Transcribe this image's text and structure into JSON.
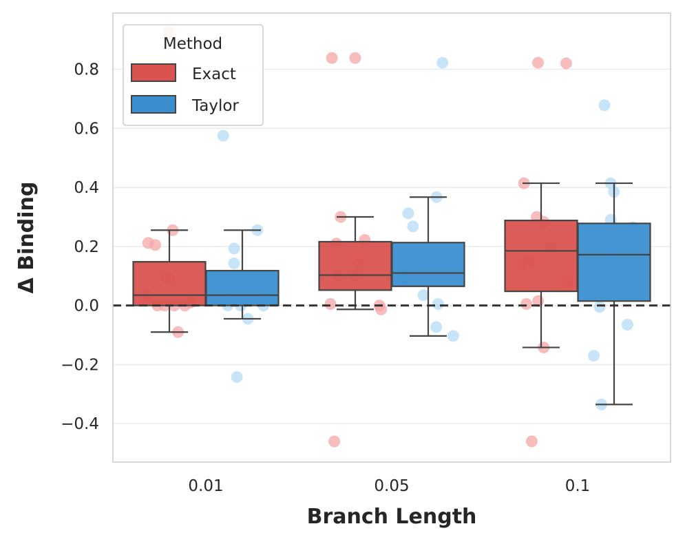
{
  "chart_data": {
    "type": "box",
    "title": "",
    "xlabel": "Branch Length",
    "ylabel": "Δ Binding",
    "categories": [
      "0.01",
      "0.05",
      "0.1"
    ],
    "ylim": [
      -0.53,
      0.99
    ],
    "yticks": [
      -0.4,
      -0.2,
      0.0,
      0.2,
      0.4,
      0.6,
      0.8
    ],
    "ytick_labels": [
      "−0.4",
      "−0.2",
      "0.0",
      "0.2",
      "0.4",
      "0.6",
      "0.8"
    ],
    "grid": true,
    "reference_line": {
      "y": 0.0,
      "style": "dashed"
    },
    "legend": {
      "title": "Method",
      "placement": "top-left",
      "entries": [
        "Exact",
        "Taylor"
      ]
    },
    "series": [
      {
        "name": "Exact",
        "color": "#d9534f",
        "point_color": "#f4a6a6",
        "boxes": [
          {
            "category": "0.01",
            "whisker_low": -0.09,
            "q1": 0.0,
            "median": 0.035,
            "q3": 0.148,
            "whisker_high": 0.255
          },
          {
            "category": "0.05",
            "whisker_low": -0.013,
            "q1": 0.052,
            "median": 0.103,
            "q3": 0.216,
            "whisker_high": 0.3
          },
          {
            "category": "0.1",
            "whisker_low": -0.142,
            "q1": 0.048,
            "median": 0.185,
            "q3": 0.288,
            "whisker_high": 0.414
          }
        ],
        "points": [
          {
            "category": "0.01",
            "y": [
              0.925,
              0.255,
              0.212,
              0.205,
              0.095,
              0.09,
              0.035,
              0.01,
              0.0,
              0.0,
              0.0,
              0.0,
              -0.09
            ]
          },
          {
            "category": "0.05",
            "y": [
              0.838,
              0.838,
              0.3,
              0.222,
              0.21,
              0.14,
              0.1,
              0.1,
              0.005,
              0.0,
              -0.013,
              -0.46
            ]
          },
          {
            "category": "0.1",
            "y": [
              0.822,
              0.82,
              0.414,
              0.3,
              0.283,
              0.2,
              0.15,
              0.14,
              0.08,
              0.015,
              0.005,
              -0.142,
              -0.46
            ]
          }
        ]
      },
      {
        "name": "Taylor",
        "color": "#3b8fd0",
        "point_color": "#b5dcf5",
        "boxes": [
          {
            "category": "0.01",
            "whisker_low": -0.045,
            "q1": 0.0,
            "median": 0.035,
            "q3": 0.118,
            "whisker_high": 0.255
          },
          {
            "category": "0.05",
            "whisker_low": -0.103,
            "q1": 0.065,
            "median": 0.11,
            "q3": 0.213,
            "whisker_high": 0.367
          },
          {
            "category": "0.1",
            "whisker_low": -0.335,
            "q1": 0.015,
            "median": 0.172,
            "q3": 0.278,
            "whisker_high": 0.414
          }
        ],
        "points": [
          {
            "category": "0.01",
            "y": [
              0.575,
              0.255,
              0.193,
              0.143,
              0.08,
              0.04,
              0.01,
              0.0,
              0.0,
              0.0,
              -0.045,
              -0.242
            ]
          },
          {
            "category": "0.05",
            "y": [
              0.822,
              0.367,
              0.312,
              0.268,
              0.15,
              0.12,
              0.1,
              0.035,
              0.005,
              -0.073,
              -0.103
            ]
          },
          {
            "category": "0.1",
            "y": [
              0.678,
              0.414,
              0.385,
              0.29,
              0.265,
              0.2,
              0.15,
              0.1,
              -0.005,
              -0.065,
              -0.17,
              -0.335
            ]
          }
        ]
      }
    ]
  }
}
